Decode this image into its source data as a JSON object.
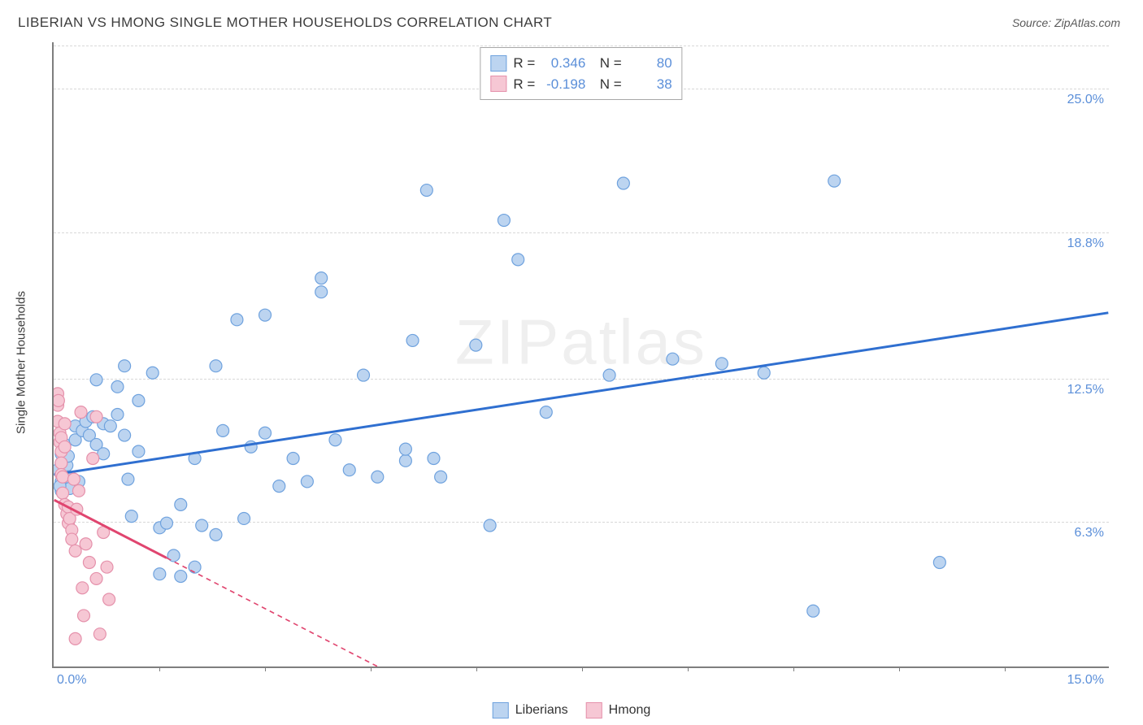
{
  "title": "LIBERIAN VS HMONG SINGLE MOTHER HOUSEHOLDS CORRELATION CHART",
  "source": "Source: ZipAtlas.com",
  "ylabel": "Single Mother Households",
  "watermark": "ZIPatlas",
  "chart": {
    "type": "scatter",
    "background_color": "#ffffff",
    "grid_color": "#d8d8d8",
    "axis_color": "#7e7e7e",
    "tick_color": "#5b8fd9",
    "xlim": [
      0,
      15
    ],
    "ylim": [
      0,
      27
    ],
    "x_ticks_minor": [
      1.5,
      3.0,
      4.5,
      6.0,
      7.5,
      9.0,
      10.5,
      12.0,
      13.5
    ],
    "x_tick_labels": {
      "left": "0.0%",
      "right": "15.0%"
    },
    "y_ticks": [
      {
        "v": 6.3,
        "label": "6.3%"
      },
      {
        "v": 12.5,
        "label": "12.5%"
      },
      {
        "v": 18.8,
        "label": "18.8%"
      },
      {
        "v": 25.0,
        "label": "25.0%"
      }
    ],
    "marker_radius": 7.5,
    "marker_stroke_width": 1.2,
    "trend_line_width": 3,
    "trend_dash": "6 5",
    "series": [
      {
        "name": "Liberians",
        "fill": "#bcd4f0",
        "stroke": "#6fa2de",
        "trend_color": "#2f6fd0",
        "stats": {
          "R": "0.346",
          "N": "80"
        },
        "trend": {
          "x1": 0,
          "y1": 8.3,
          "x2": 15,
          "y2": 15.3,
          "solid_until_x": 15
        },
        "points": [
          [
            0.1,
            7.6
          ],
          [
            0.1,
            8.0
          ],
          [
            0.1,
            8.4
          ],
          [
            0.1,
            8.8
          ],
          [
            0.1,
            9.2
          ],
          [
            0.15,
            9.6
          ],
          [
            0.15,
            7.9
          ],
          [
            0.15,
            8.3
          ],
          [
            0.18,
            8.7
          ],
          [
            0.2,
            9.1
          ],
          [
            0.2,
            8.2
          ],
          [
            0.22,
            7.7
          ],
          [
            0.3,
            9.8
          ],
          [
            0.3,
            10.4
          ],
          [
            0.35,
            8.0
          ],
          [
            0.4,
            10.2
          ],
          [
            0.45,
            10.6
          ],
          [
            0.5,
            10.0
          ],
          [
            0.55,
            10.8
          ],
          [
            0.6,
            12.4
          ],
          [
            0.6,
            9.6
          ],
          [
            0.7,
            9.2
          ],
          [
            0.7,
            10.5
          ],
          [
            0.8,
            10.4
          ],
          [
            0.9,
            12.1
          ],
          [
            0.9,
            10.9
          ],
          [
            1.0,
            10.0
          ],
          [
            1.0,
            13.0
          ],
          [
            1.05,
            8.1
          ],
          [
            1.1,
            6.5
          ],
          [
            1.2,
            11.5
          ],
          [
            1.2,
            9.3
          ],
          [
            1.4,
            12.7
          ],
          [
            1.5,
            4.0
          ],
          [
            1.5,
            6.0
          ],
          [
            1.6,
            6.2
          ],
          [
            1.7,
            4.8
          ],
          [
            1.8,
            3.9
          ],
          [
            1.8,
            7.0
          ],
          [
            2.0,
            9.0
          ],
          [
            2.0,
            4.3
          ],
          [
            2.1,
            6.1
          ],
          [
            2.3,
            13.0
          ],
          [
            2.3,
            5.7
          ],
          [
            2.4,
            10.2
          ],
          [
            2.6,
            15.0
          ],
          [
            2.7,
            6.4
          ],
          [
            2.8,
            9.5
          ],
          [
            3.0,
            10.1
          ],
          [
            3.0,
            15.2
          ],
          [
            3.2,
            7.8
          ],
          [
            3.4,
            9.0
          ],
          [
            3.6,
            8.0
          ],
          [
            3.8,
            16.2
          ],
          [
            3.8,
            16.8
          ],
          [
            4.0,
            9.8
          ],
          [
            4.2,
            8.5
          ],
          [
            4.4,
            12.6
          ],
          [
            4.6,
            8.2
          ],
          [
            5.0,
            8.9
          ],
          [
            5.0,
            9.4
          ],
          [
            5.1,
            14.1
          ],
          [
            5.3,
            20.6
          ],
          [
            5.4,
            9.0
          ],
          [
            5.5,
            8.2
          ],
          [
            6.0,
            13.9
          ],
          [
            6.2,
            6.1
          ],
          [
            6.4,
            19.3
          ],
          [
            6.6,
            17.6
          ],
          [
            7.0,
            11.0
          ],
          [
            7.9,
            12.6
          ],
          [
            8.1,
            20.9
          ],
          [
            8.8,
            13.3
          ],
          [
            9.5,
            13.1
          ],
          [
            10.1,
            12.7
          ],
          [
            10.8,
            2.4
          ],
          [
            11.1,
            21.0
          ],
          [
            12.6,
            4.5
          ],
          [
            0.05,
            8.5
          ],
          [
            0.08,
            7.8
          ]
        ]
      },
      {
        "name": "Hmong",
        "fill": "#f6c7d4",
        "stroke": "#e591ab",
        "trend_color": "#e0456f",
        "stats": {
          "R": "-0.198",
          "N": "38"
        },
        "trend": {
          "x1": 0,
          "y1": 7.2,
          "x2": 4.6,
          "y2": 0,
          "solid_until_x": 1.6
        },
        "points": [
          [
            0.05,
            11.8
          ],
          [
            0.05,
            11.3
          ],
          [
            0.05,
            10.6
          ],
          [
            0.08,
            10.1
          ],
          [
            0.08,
            9.7
          ],
          [
            0.1,
            9.3
          ],
          [
            0.1,
            9.9
          ],
          [
            0.1,
            8.8
          ],
          [
            0.1,
            8.3
          ],
          [
            0.12,
            7.5
          ],
          [
            0.12,
            8.2
          ],
          [
            0.15,
            10.5
          ],
          [
            0.15,
            7.0
          ],
          [
            0.15,
            9.5
          ],
          [
            0.18,
            6.6
          ],
          [
            0.2,
            6.9
          ],
          [
            0.2,
            6.2
          ],
          [
            0.22,
            6.4
          ],
          [
            0.25,
            5.9
          ],
          [
            0.25,
            5.5
          ],
          [
            0.28,
            8.1
          ],
          [
            0.3,
            5.0
          ],
          [
            0.32,
            6.8
          ],
          [
            0.35,
            7.6
          ],
          [
            0.38,
            11.0
          ],
          [
            0.4,
            3.4
          ],
          [
            0.42,
            2.2
          ],
          [
            0.45,
            5.3
          ],
          [
            0.5,
            4.5
          ],
          [
            0.55,
            9.0
          ],
          [
            0.6,
            10.8
          ],
          [
            0.6,
            3.8
          ],
          [
            0.65,
            1.4
          ],
          [
            0.7,
            5.8
          ],
          [
            0.75,
            4.3
          ],
          [
            0.78,
            2.9
          ],
          [
            0.3,
            1.2
          ],
          [
            0.06,
            11.5
          ]
        ]
      }
    ],
    "legend_labels": {
      "lib": "Liberians",
      "hmong": "Hmong"
    }
  }
}
